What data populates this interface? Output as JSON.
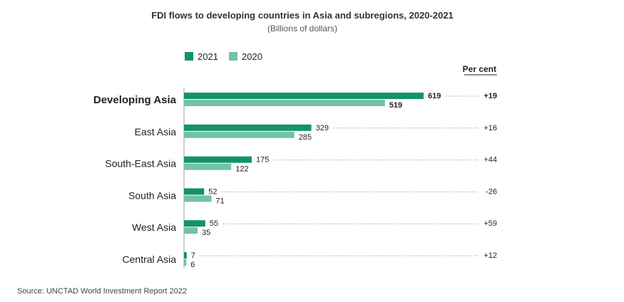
{
  "chart_data": {
    "type": "bar",
    "orientation": "horizontal",
    "title": "FDI flows to developing countries in Asia and subregions, 2020-2021",
    "subtitle": "(Billions of dollars)",
    "categories": [
      "Developing Asia",
      "East Asia",
      "South-East Asia",
      "South Asia",
      "West Asia",
      "Central Asia"
    ],
    "series": [
      {
        "name": "2021",
        "color": "#13926f",
        "values": [
          619,
          329,
          175,
          52,
          55,
          7
        ]
      },
      {
        "name": "2020",
        "color": "#72c2a8",
        "values": [
          519,
          285,
          122,
          71,
          35,
          6
        ]
      }
    ],
    "percent_change_header": "Per cent",
    "percent_change": [
      "+19",
      "+16",
      "+44",
      "-26",
      "+59",
      "+12"
    ],
    "highlight_category": "Developing Asia",
    "xlim": [
      0,
      619
    ],
    "legend_position": "top-left",
    "source": "Source: UNCTAD World Investment Report 2022"
  }
}
